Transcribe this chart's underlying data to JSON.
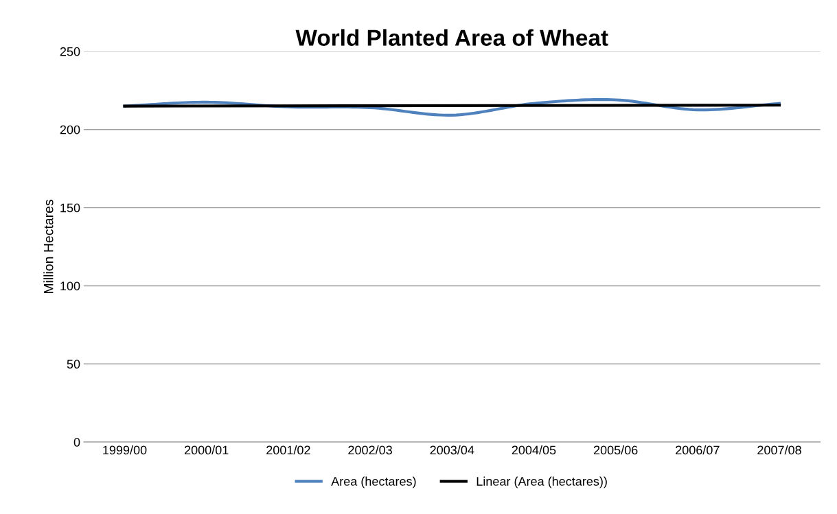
{
  "chart_data": {
    "type": "line",
    "title": "World Planted Area of Wheat",
    "ylabel": "Million Hectares",
    "categories": [
      "1999/00",
      "2000/01",
      "2001/02",
      "2002/03",
      "2003/04",
      "2004/05",
      "2005/06",
      "2006/07",
      "2007/08"
    ],
    "series": [
      {
        "name": "Area (hectares)",
        "color": "#4f81bd",
        "values": [
          215.0,
          217.5,
          214.5,
          214.0,
          209.2,
          216.7,
          219.0,
          212.6,
          216.7
        ]
      },
      {
        "name": "Linear (Area (hectares))",
        "color": "#000000",
        "x": [
          "1999/00",
          "2007/08"
        ],
        "values": [
          215.0,
          215.6
        ]
      }
    ],
    "ylim": [
      0,
      250
    ],
    "yticks": [
      0,
      50,
      100,
      150,
      200,
      250
    ],
    "grid": "y",
    "legend": "bottom",
    "marker": "none",
    "line_style": "solid"
  }
}
